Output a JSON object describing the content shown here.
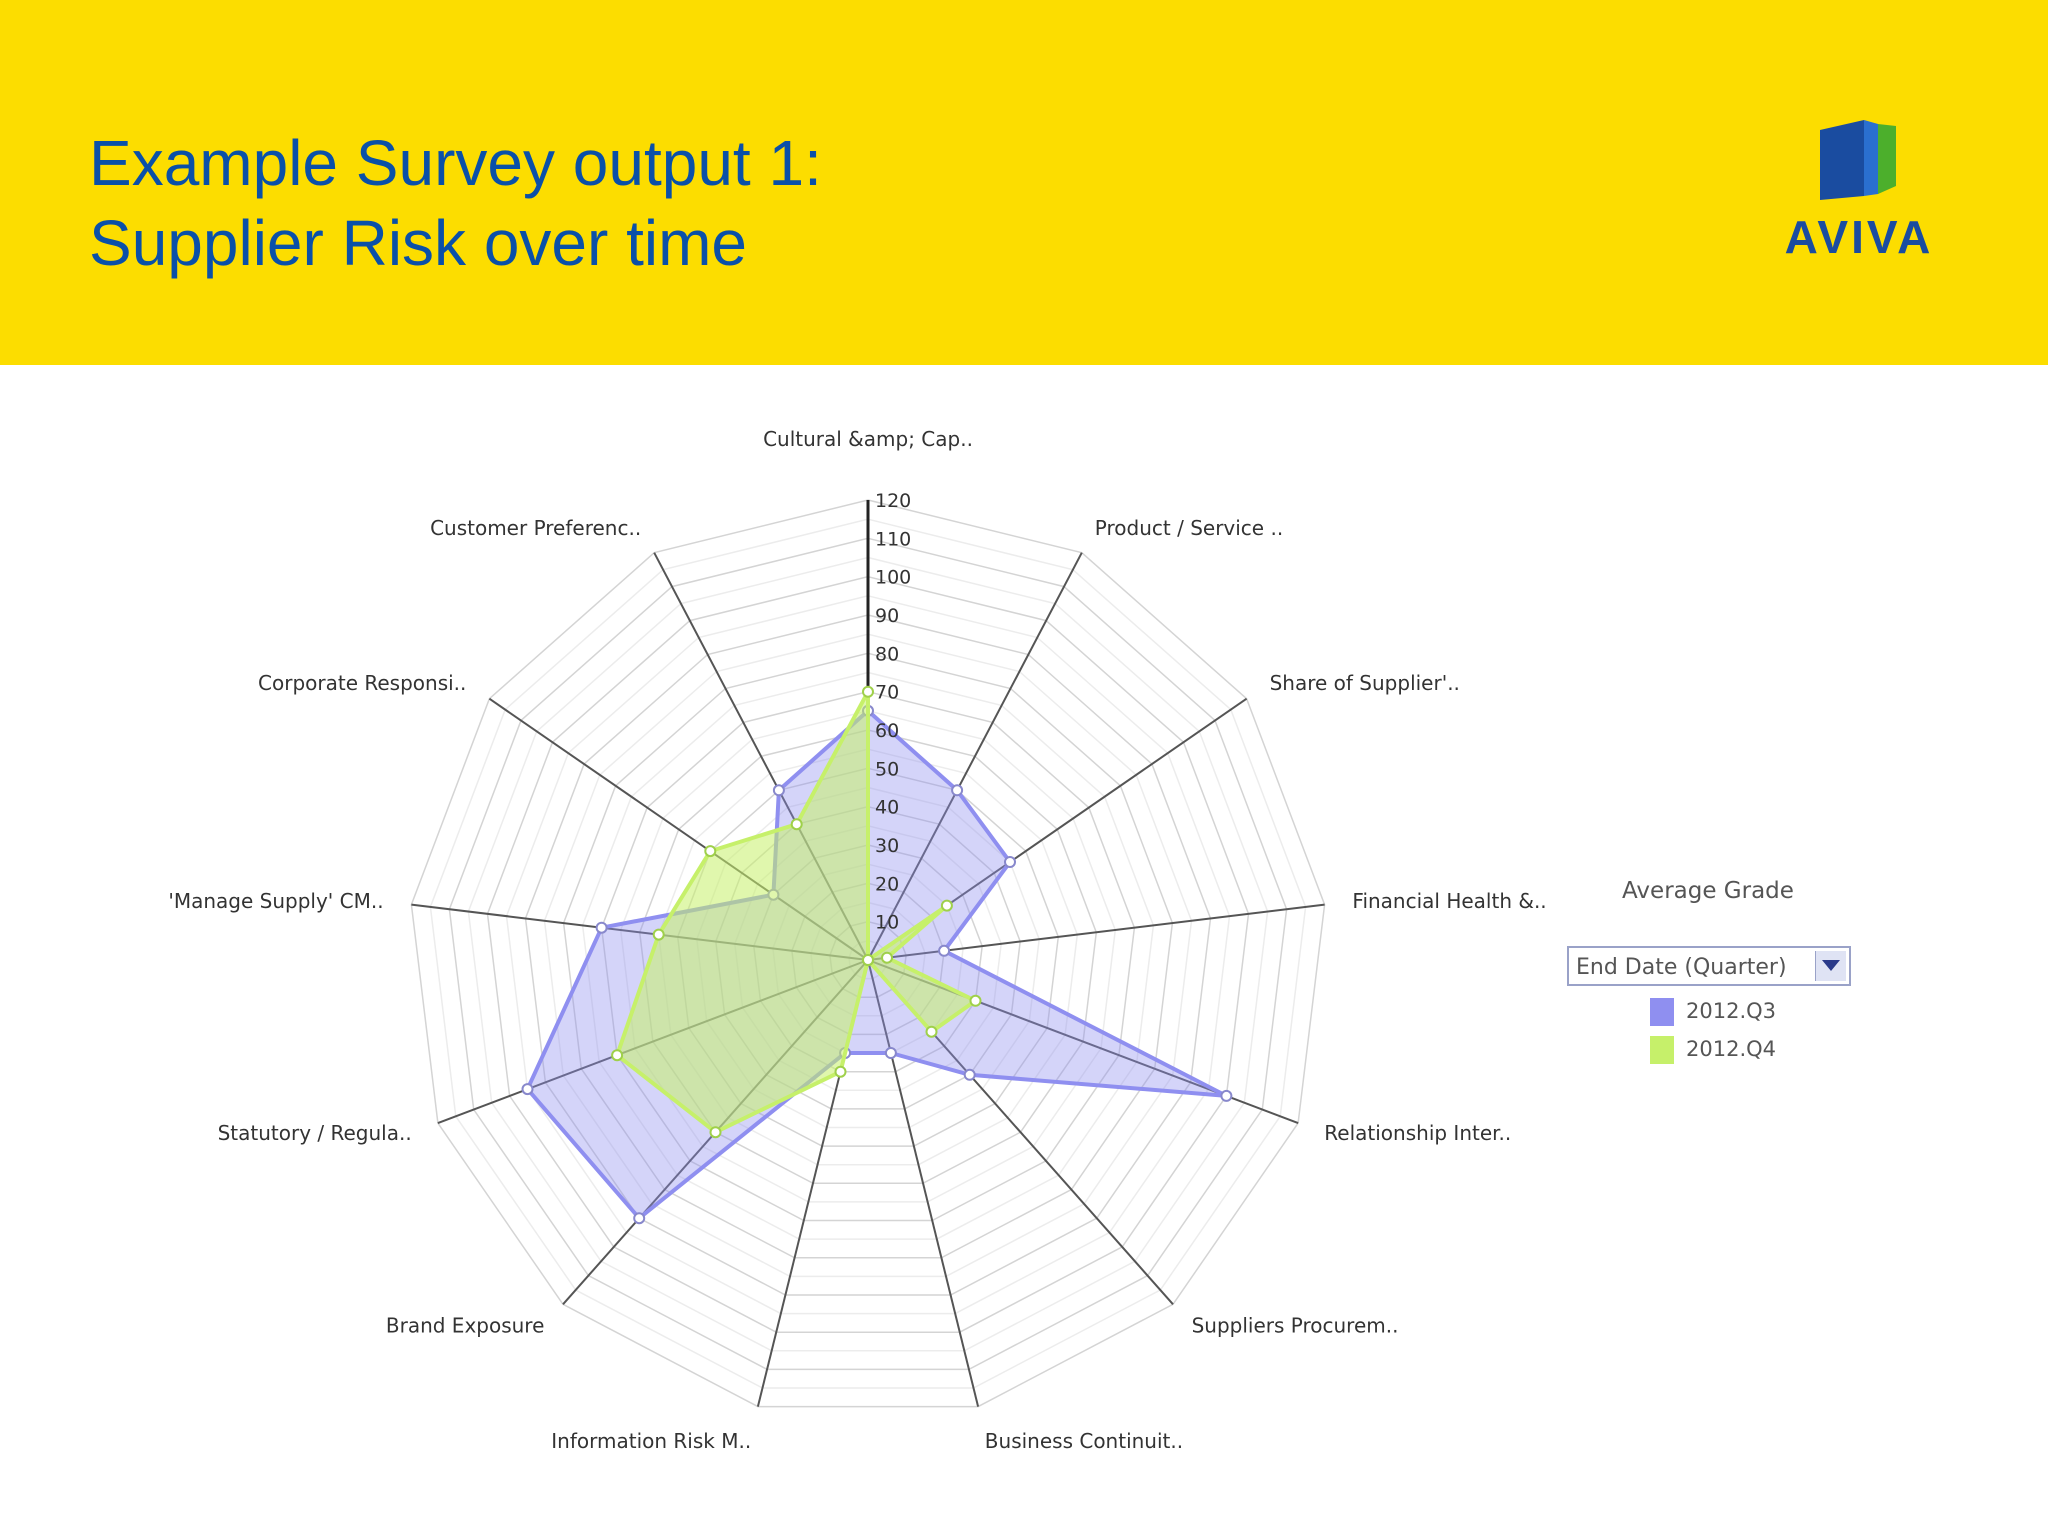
{
  "header": {
    "title_line1": "Example Survey output 1:",
    "title_line2": "Supplier Risk over time",
    "background_color": "#fcdd00",
    "title_color": "#0a50a8"
  },
  "logo": {
    "text": "AVIVA",
    "icon": "aviva-logo-icon"
  },
  "legend": {
    "title": "Average Grade",
    "dropdown_label": "End Date (Quarter)",
    "dropdown_icon": "chevron-down-icon",
    "items": [
      {
        "label": "2012.Q3",
        "color": "#8f8ff0"
      },
      {
        "label": "2012.Q4",
        "color": "#c6f06a"
      }
    ]
  },
  "chart_data": {
    "type": "radar",
    "title": "",
    "categories": [
      "Cultural &amp; Cap..",
      "Product / Service ..",
      "Share of Supplier'..",
      "Financial Health &..",
      "Relationship Inter..",
      "Suppliers Procurem..",
      "Business Continuit..",
      "Information Risk M..",
      "Brand Exposure",
      "Statutory / Regula..",
      "'Manage Supply' CM..",
      "Corporate Responsi..",
      "Customer Preferenc.."
    ],
    "radial_ticks": [
      "10",
      "20",
      "30",
      "40",
      "50",
      "60",
      "70",
      "80",
      "90",
      "100",
      "110",
      "120"
    ],
    "rlim": [
      0,
      120
    ],
    "grid": true,
    "legend_position": "right",
    "series": [
      {
        "name": "2012.Q3",
        "color": "#8f8ff0",
        "values": [
          65,
          50,
          45,
          20,
          100,
          40,
          25,
          25,
          90,
          95,
          70,
          30,
          50
        ]
      },
      {
        "name": "2012.Q4",
        "color": "#c6f06a",
        "values": [
          70,
          0,
          25,
          5,
          30,
          25,
          0,
          30,
          60,
          70,
          55,
          50,
          40
        ]
      }
    ]
  }
}
